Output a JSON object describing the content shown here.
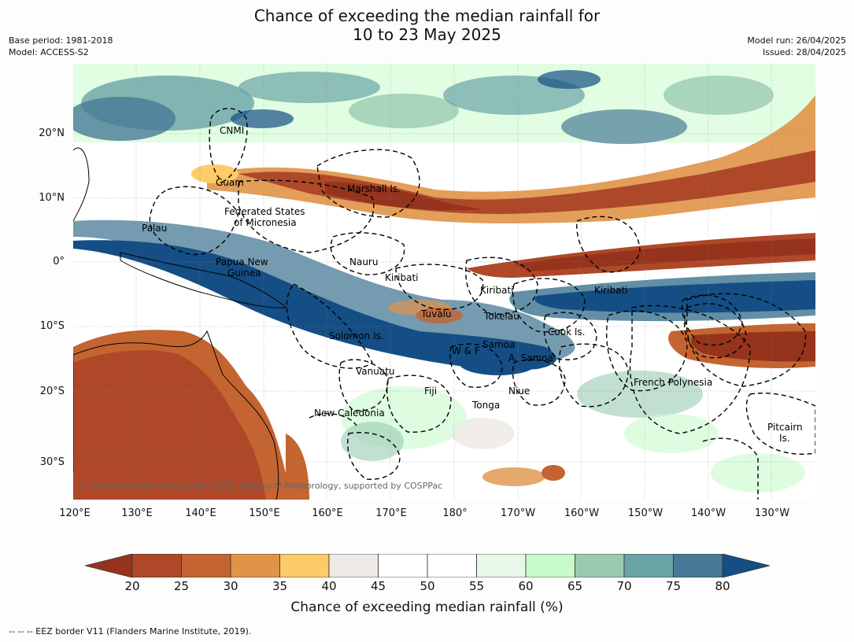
{
  "title": {
    "line1": "Chance of exceeding the median rainfall for",
    "line2": "10 to 23 May 2025"
  },
  "meta_left": {
    "base_period": "Base period: 1981-2018",
    "model": "Model: ACCESS-S2"
  },
  "meta_right": {
    "model_run": "Model run: 26/04/2025",
    "issued": "Issued: 28/04/2025"
  },
  "map": {
    "lon_labels": [
      "120°E",
      "130°E",
      "140°E",
      "150°E",
      "160°E",
      "170°E",
      "180°",
      "170°W",
      "160°W",
      "150°W",
      "140°W",
      "130°W"
    ],
    "lat_labels": [
      "20°N",
      "10°N",
      "0°",
      "10°S",
      "20°S",
      "30°S"
    ],
    "region_labels": [
      "CNMI",
      "Guam",
      "Marshall Is.",
      "Federated States",
      "of Micronesia",
      "Palau",
      "Nauru",
      "Papua New",
      "Guinea",
      "Kiribati",
      "Kiribati",
      "Kiribati",
      "Tuvalu",
      "Tokelau",
      "Solomon Is.",
      "Samoa",
      "W & F",
      "A. Samoa",
      "Cook Is.",
      "Vanuatu",
      "Fiji",
      "Niue",
      "French Polynesia",
      "Tonga",
      "New Caledonia",
      "Pitcairn",
      "Is."
    ],
    "copyright": "© Commonwealth of Australia 2025, Bureau of Meteorology, supported by COSPPac"
  },
  "colorbar": {
    "ticks": [
      "20",
      "25",
      "30",
      "35",
      "40",
      "45",
      "50",
      "55",
      "60",
      "65",
      "70",
      "75",
      "80"
    ],
    "colors": [
      "#96331c",
      "#ae4828",
      "#c46430",
      "#e09448",
      "#fdcb68",
      "#edeae5",
      "#ffffff",
      "#ffffff",
      "#e7f7e9",
      "#c8fbcb",
      "#9acbb2",
      "#6aa3a5",
      "#477a97",
      "#144e85"
    ],
    "label": "Chance of exceeding median rainfall (%)"
  },
  "footer": "-- -- -- EEZ border V11 (Flanders Marine Institute, 2019)."
}
